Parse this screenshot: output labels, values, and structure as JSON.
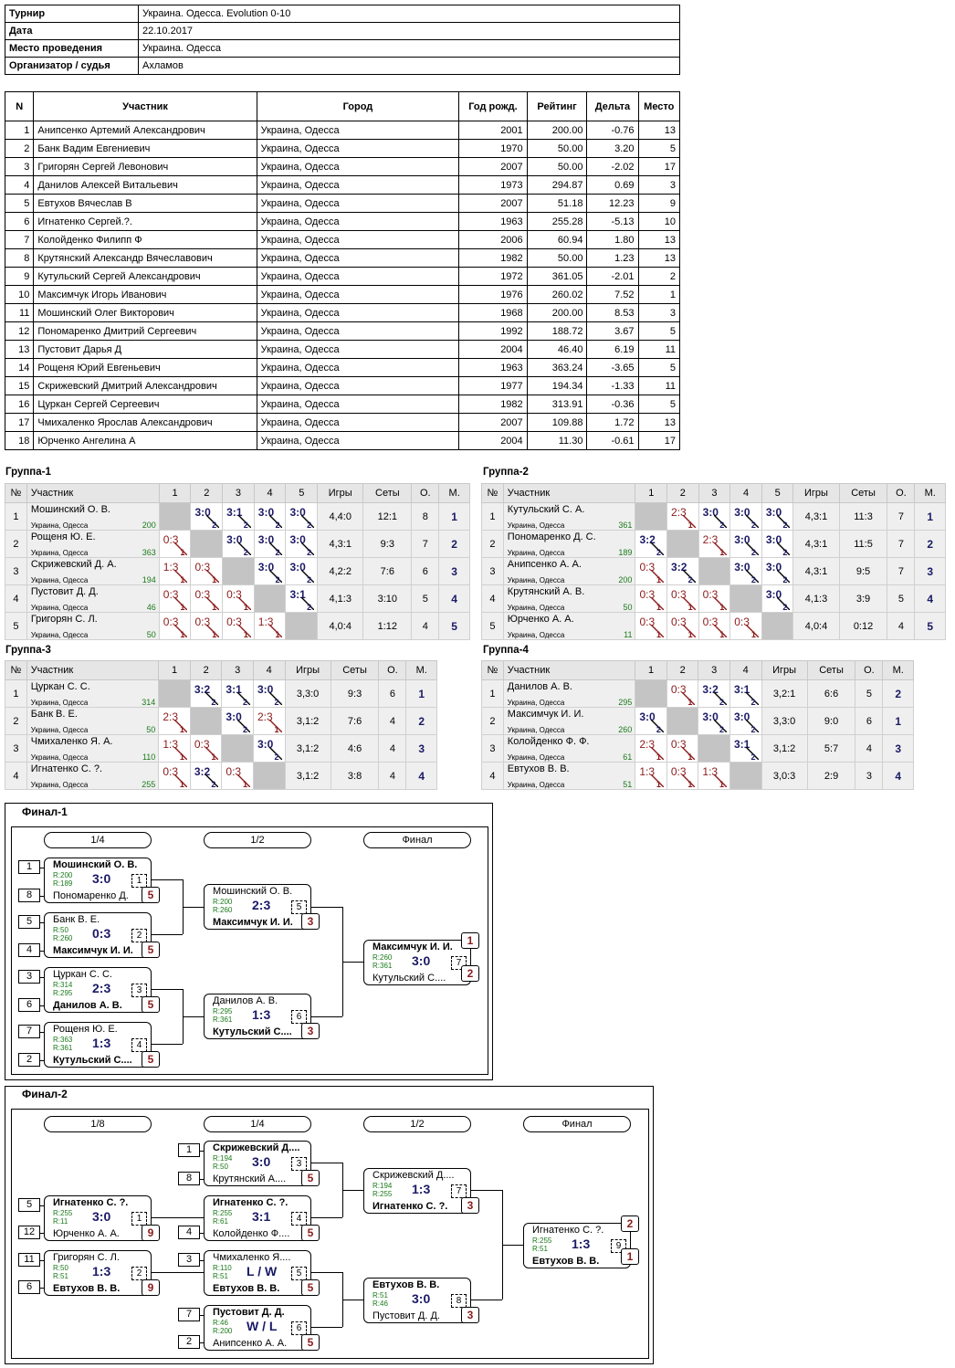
{
  "info": {
    "rows": [
      {
        "label": "Турнир",
        "value": "Украина. Одесса. Evolution 0-10"
      },
      {
        "label": "Дата",
        "value": "22.10.2017"
      },
      {
        "label": "Место проведения",
        "value": "Украина. Одесса"
      },
      {
        "label": "Организатор / судья",
        "value": "Ахламов"
      }
    ]
  },
  "participants": {
    "headers": [
      "N",
      "Участник",
      "Город",
      "Год рожд.",
      "Рейтинг",
      "Дельта",
      "Место"
    ],
    "rows": [
      [
        "1",
        "Анипсенко Артемий Александрович",
        "Украина, Одесса",
        "2001",
        "200.00",
        "-0.76",
        "13"
      ],
      [
        "2",
        "Банк Вадим Евгениевич",
        "Украина, Одесса",
        "1970",
        "50.00",
        "3.20",
        "5"
      ],
      [
        "3",
        "Григорян Сергей Левонович",
        "Украина, Одесса",
        "2007",
        "50.00",
        "-2.02",
        "17"
      ],
      [
        "4",
        "Данилов Алексей Витальевич",
        "Украина, Одесса",
        "1973",
        "294.87",
        "0.69",
        "3"
      ],
      [
        "5",
        "Евтухов Вячеслав В",
        "Украина, Одесса",
        "2007",
        "51.18",
        "12.23",
        "9"
      ],
      [
        "6",
        "Игнатенко Сергей.?.",
        "Украина, Одесса",
        "1963",
        "255.28",
        "-5.13",
        "10"
      ],
      [
        "7",
        "Колойденко Филипп Ф",
        "Украина, Одесса",
        "2006",
        "60.94",
        "1.80",
        "13"
      ],
      [
        "8",
        "Крутянский Александр Вячеславович",
        "Украина, Одесса",
        "1982",
        "50.00",
        "1.23",
        "13"
      ],
      [
        "9",
        "Кутульский Сергей Александрович",
        "Украина, Одесса",
        "1972",
        "361.05",
        "-2.01",
        "2"
      ],
      [
        "10",
        "Максимчук Игорь Иванович",
        "Украина, Одесса",
        "1976",
        "260.02",
        "7.52",
        "1"
      ],
      [
        "11",
        "Мошинский Олег Викторович",
        "Украина, Одесса",
        "1968",
        "200.00",
        "8.53",
        "3"
      ],
      [
        "12",
        "Пономаренко Дмитрий Сергеевич",
        "Украина, Одесса",
        "1992",
        "188.72",
        "3.67",
        "5"
      ],
      [
        "13",
        "Пустовит Дарья Д",
        "Украина, Одесса",
        "2004",
        "46.40",
        "6.19",
        "11"
      ],
      [
        "14",
        "Рощеня Юрий Евгеньевич",
        "Украина, Одесса",
        "1963",
        "363.24",
        "-3.65",
        "5"
      ],
      [
        "15",
        "Скрижевский Дмитрий Александрович",
        "Украина, Одесса",
        "1977",
        "194.34",
        "-1.33",
        "11"
      ],
      [
        "16",
        "Цуркан Сергей Сергеевич",
        "Украина, Одесса",
        "1982",
        "313.91",
        "-0.36",
        "5"
      ],
      [
        "17",
        "Чмихаленко Ярослав Александрович",
        "Украина, Одесса",
        "2007",
        "109.88",
        "1.72",
        "13"
      ],
      [
        "18",
        "Юрченко Ангелина А",
        "Украина, Одесса",
        "2004",
        "11.30",
        "-0.61",
        "17"
      ]
    ]
  },
  "groups": [
    {
      "title": "Группа-1",
      "headers": [
        "№",
        "Участник",
        "1",
        "2",
        "3",
        "4",
        "5",
        "Игры",
        "Сеты",
        "О.",
        "М."
      ],
      "rows": [
        {
          "n": "1",
          "name": "Мошинский О. В.",
          "city": "Украина, Одесса",
          "rating": "200",
          "cells": [
            null,
            [
              "3:0",
              "w",
              "2"
            ],
            [
              "3:1",
              "w",
              "2"
            ],
            [
              "3:0",
              "w",
              "2"
            ],
            [
              "3:0",
              "w",
              "2"
            ]
          ],
          "games": "4,4:0",
          "sets": "12:1",
          "pts": "8",
          "place": "1"
        },
        {
          "n": "2",
          "name": "Рощеня Ю. Е.",
          "city": "Украина, Одесса",
          "rating": "363",
          "cells": [
            [
              "0:3",
              "l",
              "1"
            ],
            null,
            [
              "3:0",
              "w",
              "2"
            ],
            [
              "3:0",
              "w",
              "2"
            ],
            [
              "3:0",
              "w",
              "2"
            ]
          ],
          "games": "4,3:1",
          "sets": "9:3",
          "pts": "7",
          "place": "2"
        },
        {
          "n": "3",
          "name": "Скрижевский Д. А.",
          "city": "Украина, Одесса",
          "rating": "194",
          "cells": [
            [
              "1:3",
              "l",
              "1"
            ],
            [
              "0:3",
              "l",
              "1"
            ],
            null,
            [
              "3:0",
              "w",
              "2"
            ],
            [
              "3:0",
              "w",
              "2"
            ]
          ],
          "games": "4,2:2",
          "sets": "7:6",
          "pts": "6",
          "place": "3"
        },
        {
          "n": "4",
          "name": "Пустовит Д. Д.",
          "city": "Украина, Одесса",
          "rating": "46",
          "cells": [
            [
              "0:3",
              "l",
              "1"
            ],
            [
              "0:3",
              "l",
              "1"
            ],
            [
              "0:3",
              "l",
              "1"
            ],
            null,
            [
              "3:1",
              "w",
              "2"
            ]
          ],
          "games": "4,1:3",
          "sets": "3:10",
          "pts": "5",
          "place": "4"
        },
        {
          "n": "5",
          "name": "Григорян С. Л.",
          "city": "Украина, Одесса",
          "rating": "50",
          "cells": [
            [
              "0:3",
              "l",
              "1"
            ],
            [
              "0:3",
              "l",
              "1"
            ],
            [
              "0:3",
              "l",
              "1"
            ],
            [
              "1:3",
              "l",
              "1"
            ],
            null
          ],
          "games": "4,0:4",
          "sets": "1:12",
          "pts": "4",
          "place": "5"
        }
      ]
    },
    {
      "title": "Группа-2",
      "headers": [
        "№",
        "Участник",
        "1",
        "2",
        "3",
        "4",
        "5",
        "Игры",
        "Сеты",
        "О.",
        "М."
      ],
      "rows": [
        {
          "n": "1",
          "name": "Кутульский С. А.",
          "city": "Украина, Одесса",
          "rating": "361",
          "cells": [
            null,
            [
              "2:3",
              "l",
              "1"
            ],
            [
              "3:0",
              "w",
              "2"
            ],
            [
              "3:0",
              "w",
              "2"
            ],
            [
              "3:0",
              "w",
              "2"
            ]
          ],
          "games": "4,3:1",
          "sets": "11:3",
          "pts": "7",
          "place": "1"
        },
        {
          "n": "2",
          "name": "Пономаренко Д. С.",
          "city": "Украина, Одесса",
          "rating": "189",
          "cells": [
            [
              "3:2",
              "w",
              "2"
            ],
            null,
            [
              "2:3",
              "l",
              "1"
            ],
            [
              "3:0",
              "w",
              "2"
            ],
            [
              "3:0",
              "w",
              "2"
            ]
          ],
          "games": "4,3:1",
          "sets": "11:5",
          "pts": "7",
          "place": "2"
        },
        {
          "n": "3",
          "name": "Анипсенко А. А.",
          "city": "Украина, Одесса",
          "rating": "200",
          "cells": [
            [
              "0:3",
              "l",
              "1"
            ],
            [
              "3:2",
              "w",
              "2"
            ],
            null,
            [
              "3:0",
              "w",
              "2"
            ],
            [
              "3:0",
              "w",
              "2"
            ]
          ],
          "games": "4,3:1",
          "sets": "9:5",
          "pts": "7",
          "place": "3"
        },
        {
          "n": "4",
          "name": "Крутянский А. В.",
          "city": "Украина, Одесса",
          "rating": "50",
          "cells": [
            [
              "0:3",
              "l",
              "1"
            ],
            [
              "0:3",
              "l",
              "1"
            ],
            [
              "0:3",
              "l",
              "1"
            ],
            null,
            [
              "3:0",
              "w",
              "2"
            ]
          ],
          "games": "4,1:3",
          "sets": "3:9",
          "pts": "5",
          "place": "4"
        },
        {
          "n": "5",
          "name": "Юрченко А. А.",
          "city": "Украина, Одесса",
          "rating": "11",
          "cells": [
            [
              "0:3",
              "l",
              "1"
            ],
            [
              "0:3",
              "l",
              "1"
            ],
            [
              "0:3",
              "l",
              "1"
            ],
            [
              "0:3",
              "l",
              "1"
            ],
            null
          ],
          "games": "4,0:4",
          "sets": "0:12",
          "pts": "4",
          "place": "5"
        }
      ]
    },
    {
      "title": "Группа-3",
      "headers": [
        "№",
        "Участник",
        "1",
        "2",
        "3",
        "4",
        "Игры",
        "Сеты",
        "О.",
        "М."
      ],
      "rows": [
        {
          "n": "1",
          "name": "Цуркан С. С.",
          "city": "Украина, Одесса",
          "rating": "314",
          "cells": [
            null,
            [
              "3:2",
              "w",
              "2"
            ],
            [
              "3:1",
              "w",
              "2"
            ],
            [
              "3:0",
              "w",
              "2"
            ]
          ],
          "games": "3,3:0",
          "sets": "9:3",
          "pts": "6",
          "place": "1"
        },
        {
          "n": "2",
          "name": "Банк В. Е.",
          "city": "Украина, Одесса",
          "rating": "50",
          "cells": [
            [
              "2:3",
              "l",
              "1"
            ],
            null,
            [
              "3:0",
              "w",
              "2"
            ],
            [
              "2:3",
              "l",
              "1"
            ]
          ],
          "games": "3,1:2",
          "sets": "7:6",
          "pts": "4",
          "place": "2"
        },
        {
          "n": "3",
          "name": "Чмихаленко Я. А.",
          "city": "Украина, Одесса",
          "rating": "110",
          "cells": [
            [
              "1:3",
              "l",
              "1"
            ],
            [
              "0:3",
              "l",
              "1"
            ],
            null,
            [
              "3:0",
              "w",
              "2"
            ]
          ],
          "games": "3,1:2",
          "sets": "4:6",
          "pts": "4",
          "place": "3"
        },
        {
          "n": "4",
          "name": "Игнатенко С. ?.",
          "city": "Украина, Одесса",
          "rating": "255",
          "cells": [
            [
              "0:3",
              "l",
              "1"
            ],
            [
              "3:2",
              "w",
              "2"
            ],
            [
              "0:3",
              "l",
              "1"
            ],
            null
          ],
          "games": "3,1:2",
          "sets": "3:8",
          "pts": "4",
          "place": "4"
        }
      ]
    },
    {
      "title": "Группа-4",
      "headers": [
        "№",
        "Участник",
        "1",
        "2",
        "3",
        "4",
        "Игры",
        "Сеты",
        "О.",
        "М."
      ],
      "rows": [
        {
          "n": "1",
          "name": "Данилов А. В.",
          "city": "Украина, Одесса",
          "rating": "295",
          "cells": [
            null,
            [
              "0:3",
              "l",
              "1"
            ],
            [
              "3:2",
              "w",
              "2"
            ],
            [
              "3:1",
              "w",
              "2"
            ]
          ],
          "games": "3,2:1",
          "sets": "6:6",
          "pts": "5",
          "place": "2"
        },
        {
          "n": "2",
          "name": "Максимчук И. И.",
          "city": "Украина, Одесса",
          "rating": "260",
          "cells": [
            [
              "3:0",
              "w",
              "2"
            ],
            null,
            [
              "3:0",
              "w",
              "2"
            ],
            [
              "3:0",
              "w",
              "2"
            ]
          ],
          "games": "3,3:0",
          "sets": "9:0",
          "pts": "6",
          "place": "1"
        },
        {
          "n": "3",
          "name": "Колойденко Ф. Ф.",
          "city": "Украина, Одесса",
          "rating": "61",
          "cells": [
            [
              "2:3",
              "l",
              "1"
            ],
            [
              "0:3",
              "l",
              "1"
            ],
            null,
            [
              "3:1",
              "w",
              "2"
            ]
          ],
          "games": "3,1:2",
          "sets": "5:7",
          "pts": "4",
          "place": "3"
        },
        {
          "n": "4",
          "name": "Евтухов В. В.",
          "city": "Украина, Одесса",
          "rating": "51",
          "cells": [
            [
              "1:3",
              "l",
              "1"
            ],
            [
              "0:3",
              "l",
              "1"
            ],
            [
              "1:3",
              "l",
              "1"
            ],
            null
          ],
          "games": "3,0:3",
          "sets": "2:9",
          "pts": "3",
          "place": "4"
        }
      ]
    }
  ],
  "final1": {
    "title": "Финал-1",
    "rounds": [
      "1/4",
      "1/2",
      "Финал"
    ],
    "seeds": [
      "1",
      "8",
      "5",
      "4",
      "3",
      "6",
      "7",
      "2"
    ],
    "matches": [
      {
        "p1": "Мошинский О. В.",
        "r1": "R:200",
        "p2": "Пономаренко Д.",
        "r2": "R:189",
        "res": "3:0",
        "num": "1",
        "w": 1,
        "place": "5"
      },
      {
        "p1": "Банк В. Е.",
        "r1": "R:50",
        "p2": "Максимчук И. И.",
        "r2": "R:260",
        "res": "0:3",
        "num": "2",
        "w": 2,
        "place": "5"
      },
      {
        "p1": "Цуркан С. С.",
        "r1": "R:314",
        "p2": "Данилов А. В.",
        "r2": "R:295",
        "res": "2:3",
        "num": "3",
        "w": 2,
        "place": "5"
      },
      {
        "p1": "Рощеня Ю. Е.",
        "r1": "R:363",
        "p2": "Кутульский С....",
        "r2": "R:361",
        "res": "1:3",
        "num": "4",
        "w": 2,
        "place": "5"
      },
      {
        "p1": "Мошинский О. В.",
        "r1": "R:200",
        "p2": "Максимчук И. И.",
        "r2": "R:260",
        "res": "2:3",
        "num": "5",
        "w": 2,
        "place": "3"
      },
      {
        "p1": "Данилов А. В.",
        "r1": "R:295",
        "p2": "Кутульский С....",
        "r2": "R:361",
        "res": "1:3",
        "num": "6",
        "w": 2,
        "place": "3"
      },
      {
        "p1": "Максимчук И. И.",
        "r1": "R:260",
        "p2": "Кутульский С....",
        "r2": "R:361",
        "res": "3:0",
        "num": "7",
        "w": 1,
        "place_top": "1",
        "place_bot": "2"
      }
    ]
  },
  "final2": {
    "title": "Финал-2",
    "rounds": [
      "1/8",
      "1/4",
      "1/2",
      "Финал"
    ],
    "seeds": [
      "1",
      "8",
      "5",
      "12",
      "4",
      "11",
      "6",
      "3",
      "7",
      "2"
    ],
    "matches": [
      {
        "p1": "Скрижевский Д....",
        "r1": "R:194",
        "p2": "Крутянский А....",
        "r2": "R:50",
        "res": "3:0",
        "num": "3",
        "w": 1,
        "place": "5"
      },
      {
        "p1": "Игнатенко С. ?.",
        "r1": "R:255",
        "p2": "Юрченко А. А.",
        "r2": "R:11",
        "res": "3:0",
        "num": "1",
        "w": 1,
        "place": "9"
      },
      {
        "p1": "Игнатенко С. ?.",
        "r1": "R:255",
        "p2": "Колойденко Ф....",
        "r2": "R:61",
        "res": "3:1",
        "num": "4",
        "w": 1,
        "place": "5"
      },
      {
        "p1": "Григорян С. Л.",
        "r1": "R:50",
        "p2": "Евтухов В. В.",
        "r2": "R:51",
        "res": "1:3",
        "num": "2",
        "w": 2,
        "place": "9"
      },
      {
        "p1": "Чмихаленко Я....",
        "r1": "R:110",
        "p2": "Евтухов В. В.",
        "r2": "R:51",
        "res": "L / W",
        "num": "5",
        "w": 2,
        "place": "5"
      },
      {
        "p1": "Пустовит Д. Д.",
        "r1": "R:46",
        "p2": "Анипсенко А. А.",
        "r2": "R:200",
        "res": "W / L",
        "num": "6",
        "w": 1,
        "place": "5"
      },
      {
        "p1": "Скрижевский Д....",
        "r1": "R:194",
        "p2": "Игнатенко С. ?.",
        "r2": "R:255",
        "res": "1:3",
        "num": "7",
        "w": 2,
        "place": "3"
      },
      {
        "p1": "Евтухов В. В.",
        "r1": "R:51",
        "p2": "Пустовит Д. Д.",
        "r2": "R:46",
        "res": "3:0",
        "num": "8",
        "w": 1,
        "place": "3"
      },
      {
        "p1": "Игнатенко С. ?.",
        "r1": "R:255",
        "p2": "Евтухов В. В.",
        "r2": "R:51",
        "res": "1:3",
        "num": "9",
        "w": 2,
        "place_top": "2",
        "place_bot": "1"
      }
    ]
  }
}
